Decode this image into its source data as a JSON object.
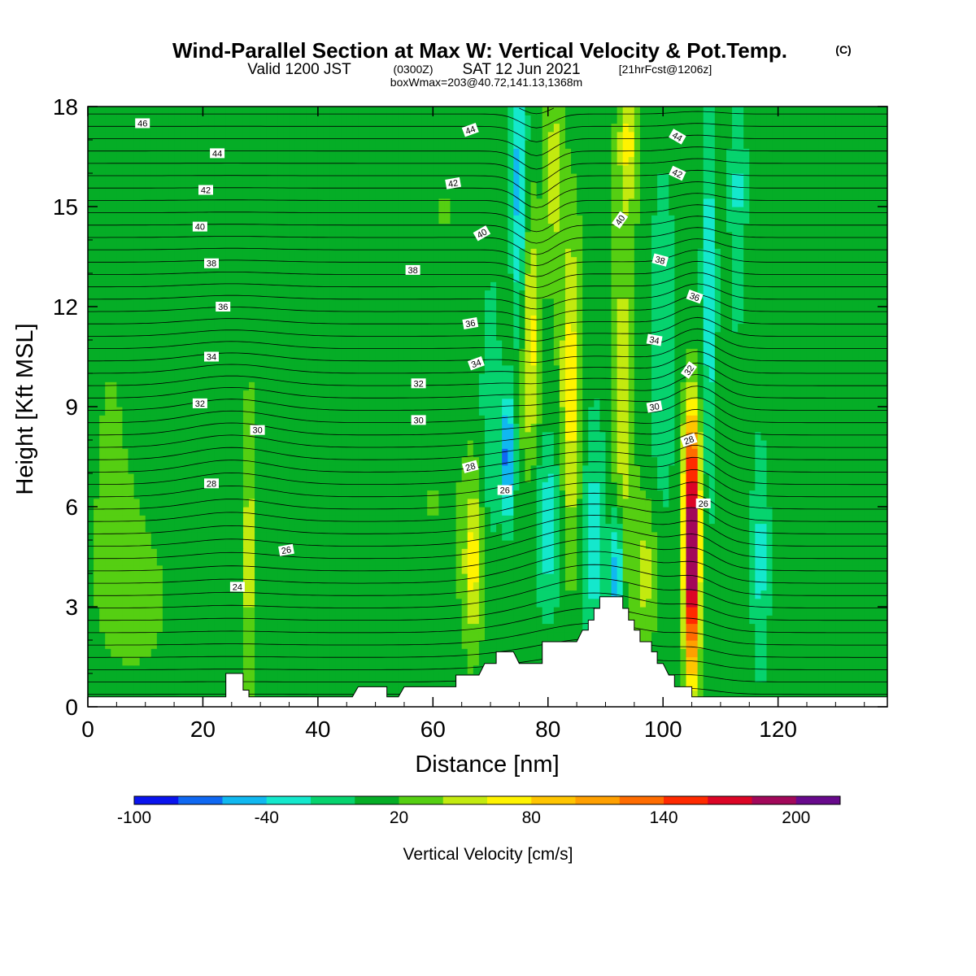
{
  "title": {
    "main": "Wind-Parallel Section at Max W: Vertical Velocity & Pot.Temp.",
    "copyright": "(C)",
    "valid_prefix": "Valid 1200 JST",
    "valid_utc": "(0300Z)",
    "valid_date": "SAT 12 Jun 2021",
    "forecast": "[21hrFcst@1206z]",
    "boxinfo": "boxWmax=203@40.72,141.13,1368m"
  },
  "chart_data": {
    "type": "heatmap",
    "xlabel": "Distance [nm]",
    "ylabel": "Height [Kft MSL]",
    "xlim": [
      0,
      139
    ],
    "ylim": [
      0,
      18
    ],
    "x_ticks": [
      0,
      20,
      40,
      60,
      80,
      100,
      120
    ],
    "y_ticks": [
      0,
      3,
      6,
      9,
      12,
      15,
      18
    ],
    "grid": false,
    "colorbar": {
      "title": "Vertical Velocity [cm/s]",
      "position": "bottom",
      "min": -100,
      "max": 220,
      "step": 20,
      "tick_labels": [
        "-100",
        "-40",
        "20",
        "80",
        "140",
        "200"
      ],
      "tick_values": [
        -100,
        -40,
        20,
        80,
        140,
        200
      ],
      "colors": [
        "#0a14ee",
        "#0f68f2",
        "#10b8f0",
        "#14e8cc",
        "#06d36e",
        "#05ad26",
        "#55cf12",
        "#c3ea0f",
        "#fff300",
        "#ffc500",
        "#ffa000",
        "#ff6c00",
        "#ff2a00",
        "#dc0526",
        "#a2085a",
        "#680a8c"
      ]
    },
    "background_w": 10,
    "w_features": [
      {
        "x": 105,
        "y": 4.2,
        "sx": 0.9,
        "sy": 2.3,
        "w": 205
      },
      {
        "x": 105,
        "y": 7.5,
        "sx": 1.1,
        "sy": 1.6,
        "w": 70
      },
      {
        "x": 84,
        "y": 9.5,
        "sx": 1.3,
        "sy": 3.5,
        "w": 62
      },
      {
        "x": 77,
        "y": 11,
        "sx": 1.2,
        "sy": 2.6,
        "w": 58
      },
      {
        "x": 67,
        "y": 4.3,
        "sx": 1.2,
        "sy": 1.7,
        "w": 55
      },
      {
        "x": 93,
        "y": 9.0,
        "sx": 1.4,
        "sy": 3.8,
        "w": 45
      },
      {
        "x": 94,
        "y": 17,
        "sx": 1.3,
        "sy": 1.5,
        "w": 52
      },
      {
        "x": 97,
        "y": 4.0,
        "sx": 1.4,
        "sy": 1.5,
        "w": 38
      },
      {
        "x": 28,
        "y": 4.5,
        "sx": 0.7,
        "sy": 2.5,
        "w": 40
      },
      {
        "x": 81,
        "y": 16,
        "sx": 1.1,
        "sy": 2.2,
        "w": 40
      },
      {
        "x": 73,
        "y": 7.5,
        "sx": 0.8,
        "sy": 1.3,
        "w": -85
      },
      {
        "x": 75,
        "y": 15.5,
        "sx": 0.9,
        "sy": 3.0,
        "w": -65
      },
      {
        "x": 92,
        "y": 4.0,
        "sx": 0.7,
        "sy": 1.4,
        "w": -80
      },
      {
        "x": 80,
        "y": 5.5,
        "sx": 1.6,
        "sy": 1.8,
        "w": -45
      },
      {
        "x": 88,
        "y": 5.0,
        "sx": 1.6,
        "sy": 2.6,
        "w": -40
      },
      {
        "x": 108,
        "y": 12.5,
        "sx": 0.9,
        "sy": 4.5,
        "w": -42
      },
      {
        "x": 117,
        "y": 4.5,
        "sx": 1.1,
        "sy": 2.5,
        "w": -38
      },
      {
        "x": 113,
        "y": 15.5,
        "sx": 1.0,
        "sy": 2.8,
        "w": -35
      },
      {
        "x": 100,
        "y": 11,
        "sx": 1.5,
        "sy": 3.5,
        "w": -30
      },
      {
        "x": 70,
        "y": 9,
        "sx": 1.2,
        "sy": 3.0,
        "w": -30
      },
      {
        "x": 4,
        "y": 9,
        "sx": 5,
        "sy": 5,
        "w": 20
      },
      {
        "x": 10,
        "y": 3,
        "sx": 8,
        "sy": 2.5,
        "w": 20
      },
      {
        "x": 33,
        "y": 10,
        "sx": 5,
        "sy": 6,
        "w": 20
      },
      {
        "x": 62,
        "y": 15,
        "sx": 6,
        "sy": 3,
        "w": 20
      },
      {
        "x": 60,
        "y": 6,
        "sx": 6,
        "sy": 3,
        "w": 20
      },
      {
        "x": 128,
        "y": 10,
        "sx": 6,
        "sy": 6,
        "w": 20
      }
    ],
    "terrain": [
      [
        0,
        0.3
      ],
      [
        24,
        0.3
      ],
      [
        24,
        1.0
      ],
      [
        26,
        1.0
      ],
      [
        26,
        1.0
      ],
      [
        27,
        1.0
      ],
      [
        27,
        0.5
      ],
      [
        28,
        0.5
      ],
      [
        28,
        0.3
      ],
      [
        46,
        0.3
      ],
      [
        47,
        0.6
      ],
      [
        52,
        0.6
      ],
      [
        52,
        0.3
      ],
      [
        54,
        0.3
      ],
      [
        55,
        0.6
      ],
      [
        64,
        0.6
      ],
      [
        64,
        0.95
      ],
      [
        68,
        0.95
      ],
      [
        69,
        1.3
      ],
      [
        71,
        1.3
      ],
      [
        71,
        1.65
      ],
      [
        74,
        1.65
      ],
      [
        75,
        1.3
      ],
      [
        79,
        1.3
      ],
      [
        79,
        1.95
      ],
      [
        85,
        1.95
      ],
      [
        86,
        2.3
      ],
      [
        87,
        2.3
      ],
      [
        87,
        2.6
      ],
      [
        88,
        2.6
      ],
      [
        88,
        2.95
      ],
      [
        89,
        2.95
      ],
      [
        89,
        3.3
      ],
      [
        93,
        3.3
      ],
      [
        93,
        2.95
      ],
      [
        94,
        2.95
      ],
      [
        94,
        2.6
      ],
      [
        95,
        2.6
      ],
      [
        95,
        2.3
      ],
      [
        96,
        2.3
      ],
      [
        96,
        1.95
      ],
      [
        98,
        1.95
      ],
      [
        98,
        1.65
      ],
      [
        99,
        1.65
      ],
      [
        99,
        1.3
      ],
      [
        100,
        1.3
      ],
      [
        101,
        0.95
      ],
      [
        102,
        0.95
      ],
      [
        102,
        0.6
      ],
      [
        105,
        0.6
      ],
      [
        105,
        0.3
      ],
      [
        139,
        0.3
      ]
    ],
    "contour_labels": [
      {
        "x": 9.5,
        "y": 17.5,
        "text": "46",
        "angle": 0
      },
      {
        "x": 22.5,
        "y": 16.6,
        "text": "44",
        "angle": 0
      },
      {
        "x": 20.5,
        "y": 15.5,
        "text": "42",
        "angle": 0
      },
      {
        "x": 19.5,
        "y": 14.4,
        "text": "40",
        "angle": 0
      },
      {
        "x": 21.5,
        "y": 13.3,
        "text": "38",
        "angle": 0
      },
      {
        "x": 23.5,
        "y": 12.0,
        "text": "36",
        "angle": 0
      },
      {
        "x": 21.5,
        "y": 10.5,
        "text": "34",
        "angle": 0
      },
      {
        "x": 19.5,
        "y": 9.1,
        "text": "32",
        "angle": 0
      },
      {
        "x": 29.5,
        "y": 8.3,
        "text": "30",
        "angle": 0
      },
      {
        "x": 21.5,
        "y": 6.7,
        "text": "28",
        "angle": 0
      },
      {
        "x": 34.5,
        "y": 4.7,
        "text": "26",
        "angle": -10
      },
      {
        "x": 26,
        "y": 3.6,
        "text": "24",
        "angle": 0
      },
      {
        "x": 66.5,
        "y": 17.3,
        "text": "44",
        "angle": -20
      },
      {
        "x": 63.5,
        "y": 15.7,
        "text": "42",
        "angle": -10
      },
      {
        "x": 68.5,
        "y": 14.2,
        "text": "40",
        "angle": -30
      },
      {
        "x": 56.5,
        "y": 13.1,
        "text": "38",
        "angle": 0
      },
      {
        "x": 66.5,
        "y": 11.5,
        "text": "36",
        "angle": -10
      },
      {
        "x": 67.5,
        "y": 10.3,
        "text": "34",
        "angle": -20
      },
      {
        "x": 57.5,
        "y": 9.7,
        "text": "32",
        "angle": 0
      },
      {
        "x": 57.5,
        "y": 8.6,
        "text": "30",
        "angle": 0
      },
      {
        "x": 66.5,
        "y": 7.2,
        "text": "28",
        "angle": -15
      },
      {
        "x": 72.5,
        "y": 6.5,
        "text": "26",
        "angle": 0
      },
      {
        "x": 102.5,
        "y": 17.1,
        "text": "44",
        "angle": 30
      },
      {
        "x": 102.5,
        "y": 16.0,
        "text": "42",
        "angle": 25
      },
      {
        "x": 92.5,
        "y": 14.6,
        "text": "40",
        "angle": -55
      },
      {
        "x": 99.5,
        "y": 13.4,
        "text": "38",
        "angle": 15
      },
      {
        "x": 105.5,
        "y": 12.3,
        "text": "36",
        "angle": 20
      },
      {
        "x": 98.5,
        "y": 11.0,
        "text": "34",
        "angle": 10
      },
      {
        "x": 104.5,
        "y": 10.1,
        "text": "32",
        "angle": -55
      },
      {
        "x": 98.5,
        "y": 9.0,
        "text": "30",
        "angle": -10
      },
      {
        "x": 104.5,
        "y": 8.0,
        "text": "28",
        "angle": -20
      },
      {
        "x": 107,
        "y": 6.1,
        "text": "26",
        "angle": 0
      }
    ]
  }
}
